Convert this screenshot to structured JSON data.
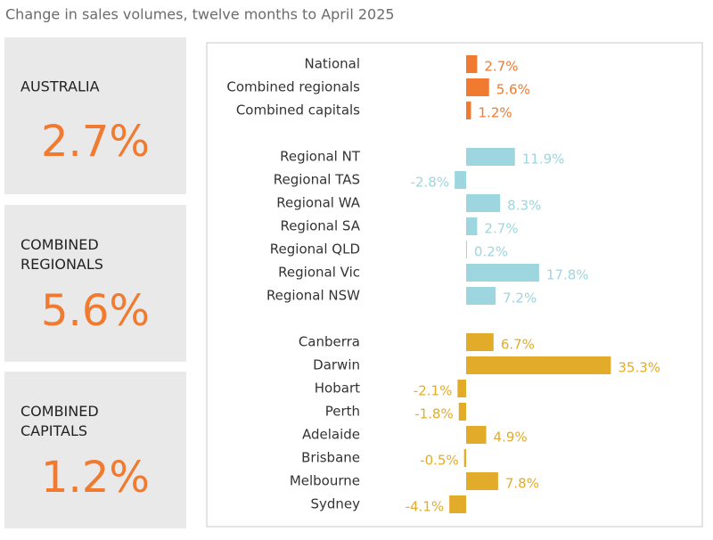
{
  "title": "Change in sales volumes, twelve months to April 2025",
  "summary": [
    {
      "label": "AUSTRALIA",
      "value": "2.7%"
    },
    {
      "label": "COMBINED REGIONALS",
      "value": "5.6%"
    },
    {
      "label": "COMBINED CAPITALS",
      "value": "1.2%"
    }
  ],
  "chart_data": {
    "type": "bar",
    "orientation": "horizontal",
    "series": [
      {
        "color": "#f07a30",
        "categories": [
          "National",
          "Combined regionals",
          "Combined capitals"
        ],
        "values": [
          2.7,
          5.6,
          1.2
        ],
        "value_labels": [
          "2.7%",
          "5.6%",
          "1.2%"
        ]
      },
      {
        "color": "#9dd6de",
        "categories": [
          "Regional NT",
          "Regional TAS",
          "Regional WA",
          "Regional SA",
          "Regional QLD",
          "Regional Vic",
          "Regional NSW"
        ],
        "values": [
          11.9,
          -2.8,
          8.3,
          2.7,
          0.2,
          17.8,
          7.2
        ],
        "value_labels": [
          "11.9%",
          "-2.8%",
          "8.3%",
          "2.7%",
          "0.2%",
          "17.8%",
          "7.2%"
        ]
      },
      {
        "color": "#e3ab2a",
        "categories": [
          "Canberra",
          "Darwin",
          "Hobart",
          "Perth",
          "Adelaide",
          "Brisbane",
          "Melbourne",
          "Sydney"
        ],
        "values": [
          6.7,
          35.3,
          -2.1,
          -1.8,
          4.9,
          -0.5,
          7.8,
          -4.1
        ],
        "value_labels": [
          "6.7%",
          "35.3%",
          "-2.1%",
          "-1.8%",
          "4.9%",
          "-0.5%",
          "7.8%",
          "-4.1%"
        ]
      }
    ]
  }
}
